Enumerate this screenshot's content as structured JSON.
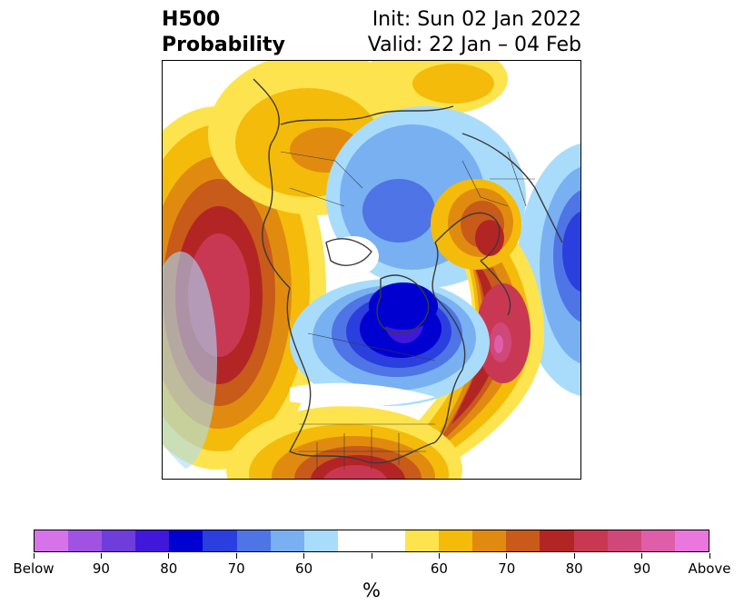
{
  "title": {
    "left_line1": "H500",
    "left_line2": "Probability",
    "right_line1": "Init: Sun 02 Jan 2022",
    "right_line2": "Valid: 22 Jan – 04 Feb"
  },
  "map": {
    "projection": "north-polar-stereographic",
    "features": [
      "coastlines",
      "country-borders",
      "state-borders"
    ],
    "anomalies": [
      {
        "region": "North Pacific",
        "sign": "above",
        "max_percent": 90
      },
      {
        "region": "Southern United States / Gulf",
        "sign": "above",
        "max_percent": 85
      },
      {
        "region": "North Atlantic",
        "sign": "above",
        "max_percent": 95
      },
      {
        "region": "Northern Europe / Scandinavia",
        "sign": "above",
        "max_percent": 80
      },
      {
        "region": "Siberia / East Asia",
        "sign": "above",
        "max_percent": 60
      },
      {
        "region": "Canada / Hudson Bay",
        "sign": "below",
        "max_percent": 80
      },
      {
        "region": "Arctic / Greenland",
        "sign": "below",
        "max_percent": 70
      },
      {
        "region": "Western Russia",
        "sign": "below",
        "max_percent": 75
      }
    ]
  },
  "colorbar": {
    "unit": "%",
    "colors": [
      "#d773e8",
      "#a053e2",
      "#6e3ddb",
      "#3f18d9",
      "#0000d0",
      "#2a3fdd",
      "#4e74e6",
      "#78b0f2",
      "#a9dcfb",
      "#ffffff",
      "#ffffff",
      "#fde44e",
      "#f4bb0a",
      "#e08b10",
      "#c85a1a",
      "#b32525",
      "#c93852",
      "#d0487a",
      "#de5ea9",
      "#e977dd"
    ],
    "ticks": [
      {
        "label": "Below",
        "frac": 0.0
      },
      {
        "label": "90",
        "frac": 0.1
      },
      {
        "label": "80",
        "frac": 0.2
      },
      {
        "label": "70",
        "frac": 0.3
      },
      {
        "label": "60",
        "frac": 0.4
      },
      {
        "label": "",
        "frac": 0.5
      },
      {
        "label": "60",
        "frac": 0.6
      },
      {
        "label": "70",
        "frac": 0.7
      },
      {
        "label": "80",
        "frac": 0.8
      },
      {
        "label": "90",
        "frac": 0.9
      },
      {
        "label": "Above",
        "frac": 1.0
      }
    ]
  }
}
